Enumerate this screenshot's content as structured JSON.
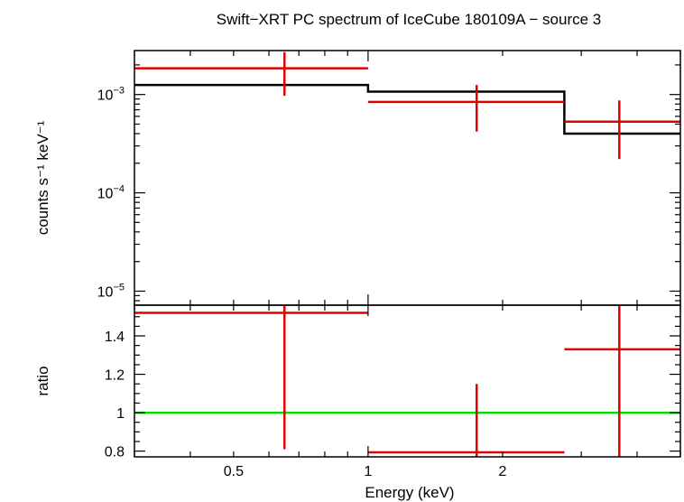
{
  "chart_data": [
    {
      "type": "step+errorbar",
      "title": "Swift−XRT PC spectrum of IceCube 180109A − source 3",
      "xlabel": "Energy (keV)",
      "ylabel": "counts s⁻¹ keV⁻¹",
      "xscale": "log",
      "yscale": "log",
      "xlim": [
        0.3,
        5.0
      ],
      "ylim": [
        7.2e-06,
        0.0028
      ],
      "grid": false,
      "y_tick_labels": [
        {
          "value": 0.001,
          "mantissa": "10",
          "exp": "−3"
        },
        {
          "value": 0.0001,
          "mantissa": "10",
          "exp": "−4"
        },
        {
          "value": 1e-05,
          "mantissa": "10",
          "exp": "−5"
        }
      ],
      "model": {
        "color": "#000000",
        "steps": [
          {
            "x0": 0.3,
            "x1": 1.0,
            "y": 0.00125
          },
          {
            "x0": 1.0,
            "x1": 2.75,
            "y": 0.00107
          },
          {
            "x0": 2.75,
            "x1": 5.0,
            "y": 0.0004
          }
        ]
      },
      "data": {
        "color": "#e00000",
        "points": [
          {
            "x": 0.65,
            "x0": 0.3,
            "x1": 1.0,
            "y": 0.00185,
            "ylo": 0.00097,
            "yhi": 0.0027
          },
          {
            "x": 1.75,
            "x0": 1.0,
            "x1": 2.75,
            "y": 0.00084,
            "ylo": 0.00042,
            "yhi": 0.00125
          },
          {
            "x": 3.65,
            "x0": 2.75,
            "x1": 5.0,
            "y": 0.00053,
            "ylo": 0.00022,
            "yhi": 0.00087
          }
        ]
      }
    },
    {
      "type": "errorbar",
      "title": "",
      "xlabel": "Energy (keV)",
      "ylabel": "ratio",
      "xscale": "log",
      "yscale": "linear",
      "xlim": [
        0.3,
        5.0
      ],
      "ylim": [
        0.77,
        1.56
      ],
      "y_ticks": [
        0.8,
        1,
        1.2,
        1.4
      ],
      "y_tick_labels": [
        "0.8",
        "1",
        "1.2",
        "1.4"
      ],
      "x_ticks": [
        0.5,
        1,
        2
      ],
      "x_tick_labels": [
        "0.5",
        "1",
        "2"
      ],
      "reference_line": {
        "y": 1,
        "color": "#00dd00"
      },
      "data": {
        "color": "#e00000",
        "points": [
          {
            "x": 0.65,
            "x0": 0.3,
            "x1": 1.0,
            "y": 1.52,
            "ylo": 0.81,
            "yhi": 1.56
          },
          {
            "x": 1.75,
            "x0": 1.0,
            "x1": 2.75,
            "y": 0.79,
            "ylo": 0.77,
            "yhi": 1.15
          },
          {
            "x": 3.65,
            "x0": 2.75,
            "x1": 5.0,
            "y": 1.33,
            "ylo": 0.77,
            "yhi": 1.56
          }
        ]
      }
    }
  ]
}
